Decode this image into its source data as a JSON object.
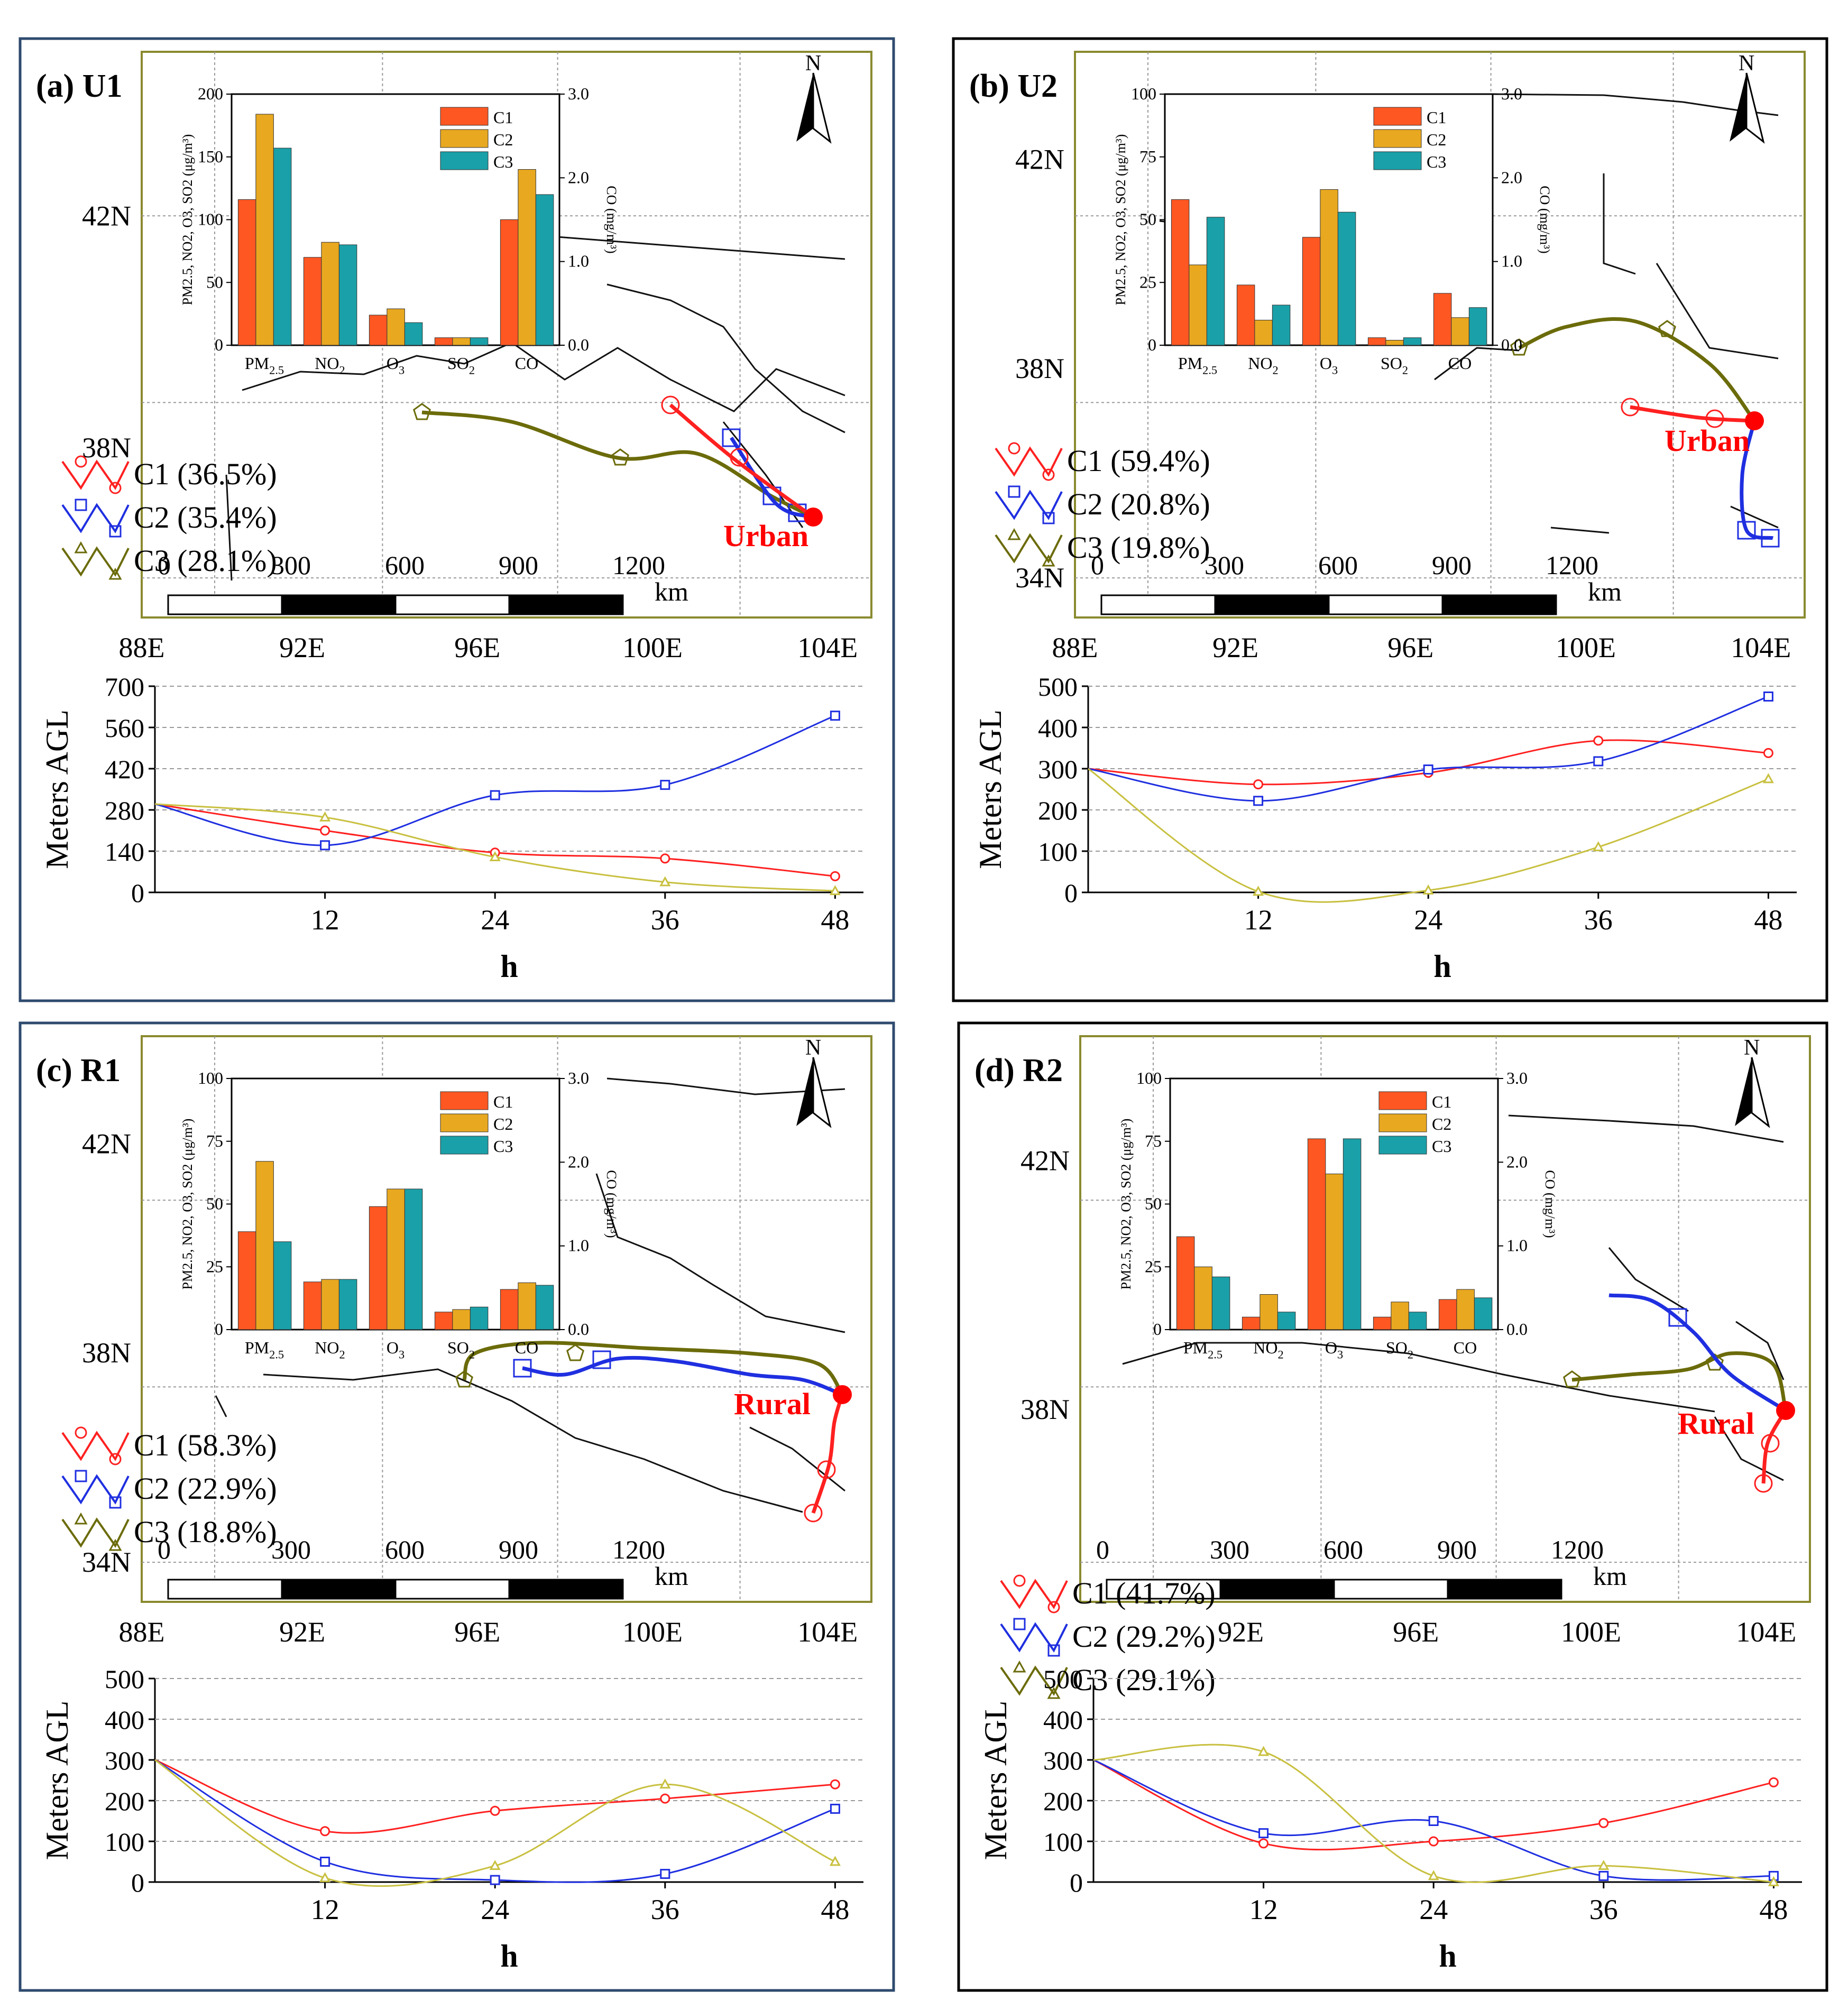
{
  "colors": {
    "c1": "#ff2020",
    "c2": "#1f2fe0",
    "c3": "#6b6b0a",
    "c3height": "#c8c040",
    "bar_c1": "#ff5722",
    "bar_c2": "#e8a820",
    "bar_c3": "#1aa0a8",
    "map_frame": "#8a8a30",
    "blue_frame": "#2e4a6e",
    "black_frame": "#000000",
    "site": "#ff0000"
  },
  "common": {
    "lon_labels": [
      "88E",
      "92E",
      "96E",
      "100E",
      "104E"
    ],
    "scale_ticks": [
      "0",
      "300",
      "600",
      "900",
      "1200"
    ],
    "scale_unit": "km",
    "north": "N",
    "bar_categories_text": [
      "PM2.5",
      "NO2",
      "O3",
      "SO2",
      "CO"
    ],
    "bar_left_axis_label": "PM2.5, NO2, O3, SO2 (μg/m³)",
    "bar_right_axis_label": "CO (mg/m³)",
    "height_ylabel": "Meters AGL",
    "height_xlabel": "h",
    "height_xticks": [
      "12",
      "24",
      "36",
      "48"
    ]
  },
  "chart_data": [
    {
      "panel": "(a) U1",
      "type": "bar",
      "site_label": "Urban",
      "lat_labels": [
        "42N",
        "38N"
      ],
      "clusters": [
        "C1 (36.5%)",
        "C2 (35.4%)",
        "C3 (28.1%)"
      ],
      "legend": [
        "C1",
        "C2",
        "C3"
      ],
      "categories": [
        "PM2.5",
        "NO2",
        "O3",
        "SO2"
      ],
      "series": [
        {
          "name": "C1",
          "values": [
            116,
            70,
            24,
            6
          ],
          "co": 1.5
        },
        {
          "name": "C2",
          "values": [
            184,
            82,
            29,
            6
          ],
          "co": 2.1
        },
        {
          "name": "C3",
          "values": [
            157,
            80,
            18,
            6
          ],
          "co": 1.8
        }
      ],
      "ylim": [
        0,
        200
      ],
      "yticks": [
        "0",
        "50",
        "100",
        "150",
        "200"
      ],
      "co_ticks": [
        "0.0",
        "1.0",
        "2.0",
        "3.0"
      ],
      "co_lim": [
        0,
        3
      ],
      "height": {
        "type": "line",
        "ylim": [
          0,
          700
        ],
        "yticks": [
          "0",
          "140",
          "280",
          "420",
          "560",
          "700"
        ],
        "series": [
          {
            "name": "C1",
            "x": [
              0,
              12,
              24,
              36,
              48
            ],
            "y": [
              300,
              210,
              135,
              115,
              55
            ]
          },
          {
            "name": "C2",
            "x": [
              0,
              12,
              24,
              36,
              48
            ],
            "y": [
              300,
              160,
              330,
              365,
              600
            ]
          },
          {
            "name": "C3",
            "x": [
              0,
              12,
              24,
              36,
              48
            ],
            "y": [
              300,
              255,
              120,
              35,
              5
            ]
          }
        ]
      }
    },
    {
      "panel": "(b) U2",
      "type": "bar",
      "site_label": "Urban",
      "lat_labels": [
        "42N",
        "38N",
        "34N"
      ],
      "clusters": [
        "C1 (59.4%)",
        "C2 (20.8%)",
        "C3 (19.8%)"
      ],
      "legend": [
        "C1",
        "C2",
        "C3"
      ],
      "categories": [
        "PM2.5",
        "NO2",
        "O3",
        "SO2"
      ],
      "series": [
        {
          "name": "C1",
          "values": [
            58,
            24,
            43,
            3
          ],
          "co": 0.62
        },
        {
          "name": "C2",
          "values": [
            32,
            10,
            62,
            2
          ],
          "co": 0.33
        },
        {
          "name": "C3",
          "values": [
            51,
            16,
            53,
            3
          ],
          "co": 0.45
        }
      ],
      "ylim": [
        0,
        100
      ],
      "yticks": [
        "0",
        "25",
        "50",
        "75",
        "100"
      ],
      "co_ticks": [
        "0.0",
        "1.0",
        "2.0",
        "3.0"
      ],
      "co_lim": [
        0,
        3
      ],
      "height": {
        "type": "line",
        "ylim": [
          0,
          500
        ],
        "yticks": [
          "0",
          "100",
          "200",
          "300",
          "400",
          "500"
        ],
        "series": [
          {
            "name": "C1",
            "x": [
              0,
              12,
              24,
              36,
              48
            ],
            "y": [
              300,
              262,
              290,
              368,
              338
            ]
          },
          {
            "name": "C2",
            "x": [
              0,
              12,
              24,
              36,
              48
            ],
            "y": [
              300,
              222,
              298,
              318,
              475
            ]
          },
          {
            "name": "C3",
            "x": [
              0,
              12,
              24,
              36,
              48
            ],
            "y": [
              300,
              2,
              5,
              110,
              275
            ]
          }
        ]
      }
    },
    {
      "panel": "(c) R1",
      "type": "bar",
      "site_label": "Rural",
      "lat_labels": [
        "42N",
        "38N",
        "34N"
      ],
      "clusters": [
        "C1 (58.3%)",
        "C2 (22.9%)",
        "C3 (18.8%)"
      ],
      "legend": [
        "C1",
        "C2",
        "C3"
      ],
      "categories": [
        "PM2.5",
        "NO2",
        "O3",
        "SO2"
      ],
      "series": [
        {
          "name": "C1",
          "values": [
            39,
            19,
            49,
            7
          ],
          "co": 0.48
        },
        {
          "name": "C2",
          "values": [
            67,
            20,
            56,
            8
          ],
          "co": 0.56
        },
        {
          "name": "C3",
          "values": [
            35,
            20,
            56,
            9
          ],
          "co": 0.53
        }
      ],
      "ylim": [
        0,
        100
      ],
      "yticks": [
        "0",
        "25",
        "50",
        "75",
        "100"
      ],
      "co_ticks": [
        "0.0",
        "1.0",
        "2.0",
        "3.0"
      ],
      "co_lim": [
        0,
        3
      ],
      "height": {
        "type": "line",
        "ylim": [
          0,
          500
        ],
        "yticks": [
          "0",
          "100",
          "200",
          "300",
          "400",
          "500"
        ],
        "series": [
          {
            "name": "C1",
            "x": [
              0,
              12,
              24,
              36,
              48
            ],
            "y": [
              300,
              125,
              175,
              205,
              240
            ]
          },
          {
            "name": "C2",
            "x": [
              0,
              12,
              24,
              36,
              48
            ],
            "y": [
              300,
              50,
              5,
              20,
              180
            ]
          },
          {
            "name": "C3",
            "x": [
              0,
              12,
              24,
              36,
              48
            ],
            "y": [
              300,
              10,
              40,
              240,
              50
            ]
          }
        ]
      }
    },
    {
      "panel": "(d) R2",
      "type": "bar",
      "site_label": "Rural",
      "lat_labels": [
        "42N",
        "38N"
      ],
      "clusters": [
        "C1 (41.7%)",
        "C2 (29.2%)",
        "C3 (29.1%)"
      ],
      "legend": [
        "C1",
        "C2",
        "C3"
      ],
      "categories": [
        "PM2.5",
        "NO2",
        "O3",
        "SO2"
      ],
      "series": [
        {
          "name": "C1",
          "values": [
            37,
            5,
            76,
            5
          ],
          "co": 0.36
        },
        {
          "name": "C2",
          "values": [
            25,
            14,
            62,
            11
          ],
          "co": 0.48
        },
        {
          "name": "C3",
          "values": [
            21,
            7,
            76,
            7
          ],
          "co": 0.38
        }
      ],
      "ylim": [
        0,
        100
      ],
      "yticks": [
        "0",
        "25",
        "50",
        "75",
        "100"
      ],
      "co_ticks": [
        "0.0",
        "1.0",
        "2.0",
        "3.0"
      ],
      "co_lim": [
        0,
        3
      ],
      "height": {
        "type": "line",
        "ylim": [
          0,
          500
        ],
        "yticks": [
          "0",
          "100",
          "200",
          "300",
          "400",
          "500"
        ],
        "series": [
          {
            "name": "C1",
            "x": [
              0,
              12,
              24,
              36,
              48
            ],
            "y": [
              300,
              95,
              100,
              145,
              245
            ]
          },
          {
            "name": "C2",
            "x": [
              0,
              12,
              24,
              36,
              48
            ],
            "y": [
              300,
              120,
              150,
              15,
              15
            ]
          },
          {
            "name": "C3",
            "x": [
              0,
              12,
              24,
              36,
              48
            ],
            "y": [
              300,
              320,
              15,
              40,
              0
            ]
          }
        ]
      }
    }
  ]
}
